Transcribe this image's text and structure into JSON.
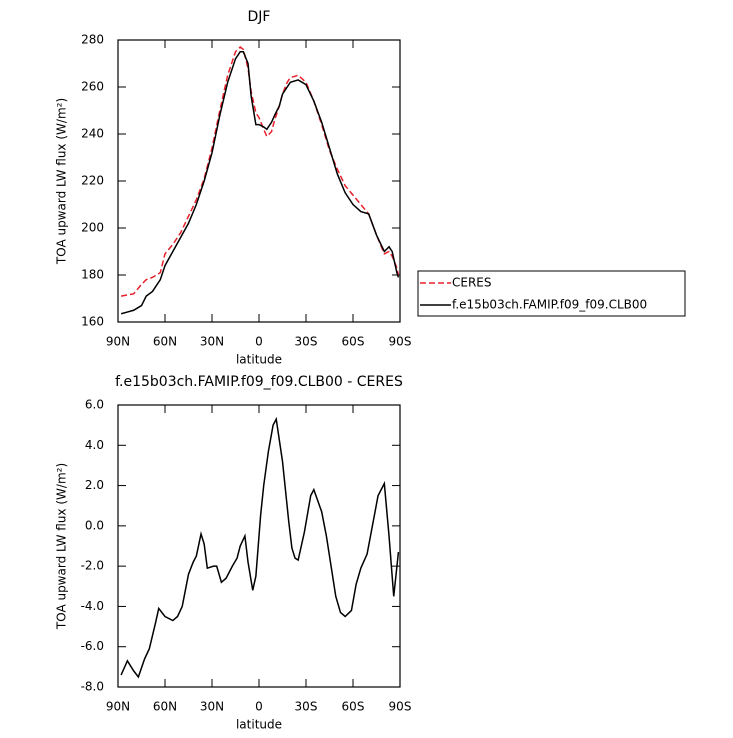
{
  "chart_data": [
    {
      "type": "line",
      "title": "DJF",
      "x_label": "latitude",
      "y_label": "TOA upward LW flux (W/m²)",
      "x": [
        88,
        80,
        75,
        72,
        68,
        63,
        60,
        55,
        50,
        45,
        40,
        35,
        30,
        25,
        20,
        15,
        12,
        10,
        7,
        5,
        2,
        0,
        -3,
        -5,
        -8,
        -10,
        -13,
        -15,
        -18,
        -20,
        -25,
        -30,
        -35,
        -40,
        -45,
        -50,
        -55,
        -60,
        -65,
        -70,
        -75,
        -80,
        -83,
        -85,
        -88,
        -89
      ],
      "series": [
        {
          "name": "CERES",
          "color": "#e8202a",
          "line_style": "dashed",
          "values": [
            171,
            172,
            176,
            178,
            179,
            181,
            189,
            193,
            198,
            205,
            212,
            221,
            234,
            250,
            265,
            275,
            277,
            276,
            268,
            258,
            249,
            247,
            242,
            239,
            241,
            246,
            252,
            257,
            262,
            264,
            265,
            262,
            254,
            244,
            233,
            225,
            218,
            214,
            210,
            206,
            197,
            189,
            190,
            188,
            183,
            180
          ]
        },
        {
          "name": "f.e15b03ch.FAMIP.f09_f09.CLB00",
          "color": "#000000",
          "line_style": "solid",
          "values": [
            163.5,
            165,
            167,
            171,
            173,
            178,
            184,
            190,
            196,
            202,
            210,
            220,
            232,
            248,
            262,
            272,
            275,
            275,
            270,
            256,
            244,
            244,
            243,
            242,
            245,
            248,
            252,
            257,
            260,
            262,
            263,
            261,
            254,
            245,
            234,
            223,
            215,
            210,
            207,
            206,
            197,
            190,
            192,
            190,
            181,
            179
          ]
        }
      ],
      "xlim": [
        90,
        -90
      ],
      "xticks": [
        {
          "value": 90,
          "label": "90N"
        },
        {
          "value": 60,
          "label": "60N"
        },
        {
          "value": 30,
          "label": "30N"
        },
        0,
        {
          "value": -30,
          "label": "30S"
        },
        {
          "value": -60,
          "label": "60S"
        },
        {
          "value": -90,
          "label": "90S"
        }
      ],
      "ylim": [
        160,
        280
      ],
      "yticks": [
        160,
        180,
        200,
        220,
        240,
        260,
        280
      ],
      "legend": "right"
    },
    {
      "type": "line",
      "title": "f.e15b03ch.FAMIP.f09_f09.CLB00 - CERES",
      "x_label": "latitude",
      "y_label": "TOA upward LW flux (W/m²)",
      "x": [
        88,
        84,
        80,
        77,
        73,
        70,
        66,
        64,
        60,
        55,
        52,
        49,
        45,
        42,
        40,
        37,
        35,
        33,
        29,
        27,
        24,
        21,
        17,
        14,
        12,
        9,
        7,
        4,
        2,
        -1,
        -3,
        -6,
        -9,
        -11,
        -15,
        -19,
        -21,
        -23,
        -25,
        -29,
        -33,
        -35,
        -40,
        -43,
        -46,
        -49,
        -52,
        -55,
        -59,
        -62,
        -65,
        -69,
        -76,
        -80,
        -83,
        -86,
        -89
      ],
      "color": "#000000",
      "values": [
        -7.4,
        -6.7,
        -7.2,
        -7.5,
        -6.6,
        -6.1,
        -4.8,
        -4.1,
        -4.5,
        -4.7,
        -4.5,
        -4.0,
        -2.4,
        -1.8,
        -1.5,
        -0.4,
        -0.9,
        -2.1,
        -2.0,
        -2.0,
        -2.8,
        -2.6,
        -2.0,
        -1.6,
        -1.0,
        -0.5,
        -1.8,
        -3.2,
        -2.5,
        0.5,
        2.0,
        3.7,
        5.0,
        5.3,
        3.2,
        0.2,
        -1.1,
        -1.6,
        -1.7,
        -0.3,
        1.5,
        1.8,
        0.7,
        -0.5,
        -2.0,
        -3.5,
        -4.3,
        -4.5,
        -4.2,
        -2.9,
        -2.1,
        -1.4,
        1.5,
        2.1,
        -0.5,
        -3.5,
        -1.3
      ],
      "xlim": [
        90,
        -90
      ],
      "xticks": [
        {
          "value": 90,
          "label": "90N"
        },
        {
          "value": 60,
          "label": "60N"
        },
        {
          "value": 30,
          "label": "30N"
        },
        0,
        {
          "value": -30,
          "label": "30S"
        },
        {
          "value": -60,
          "label": "60S"
        },
        {
          "value": -90,
          "label": "90S"
        }
      ],
      "ylim": [
        -8,
        6
      ],
      "yticks": [
        {
          "value": -8,
          "label": "-8.0"
        },
        {
          "value": -6,
          "label": "-6.0"
        },
        {
          "value": -4,
          "label": "-4.0"
        },
        {
          "value": -2,
          "label": "-2.0"
        },
        {
          "value": 0,
          "label": "0.0"
        },
        {
          "value": 2,
          "label": "2.0"
        },
        {
          "value": 4,
          "label": "4.0"
        },
        {
          "value": 6,
          "label": "6.0"
        }
      ]
    }
  ]
}
